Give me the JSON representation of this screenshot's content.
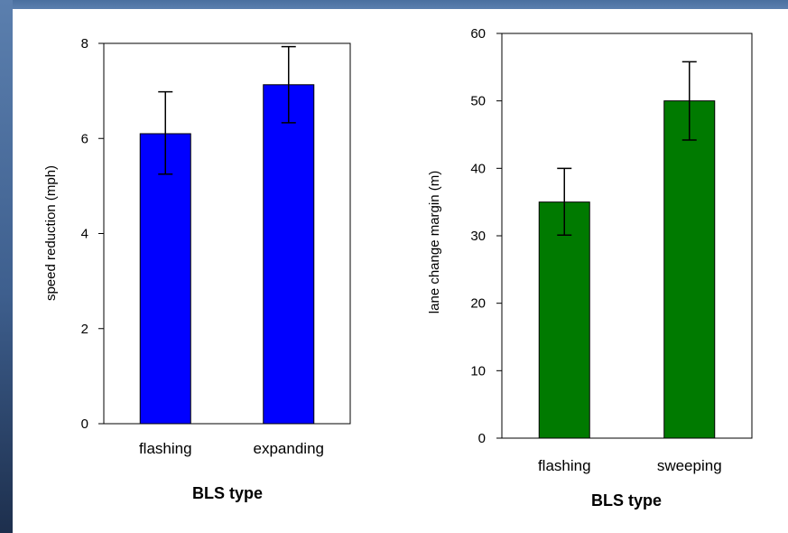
{
  "chart_data": [
    {
      "type": "bar",
      "categories": [
        "flashing",
        "expanding"
      ],
      "values": [
        6.1,
        7.13
      ],
      "error_low": [
        5.25,
        6.33
      ],
      "error_high": [
        6.98,
        7.93
      ],
      "ylim": [
        0,
        8
      ],
      "yticks": [
        0,
        2,
        4,
        6,
        8
      ],
      "ylabel": "speed reduction (mph)",
      "xlabel": "BLS type",
      "bar_color": "#0000ff",
      "grid": false
    },
    {
      "type": "bar",
      "categories": [
        "flashing",
        "sweeping"
      ],
      "values": [
        35,
        50
      ],
      "error_low": [
        30.1,
        44.2
      ],
      "error_high": [
        40,
        55.8
      ],
      "ylim": [
        0,
        60
      ],
      "yticks": [
        0,
        10,
        20,
        30,
        40,
        50,
        60
      ],
      "ylabel": "lane change margin (m)",
      "xlabel": "BLS type",
      "bar_color": "#007a00",
      "grid": false
    }
  ]
}
